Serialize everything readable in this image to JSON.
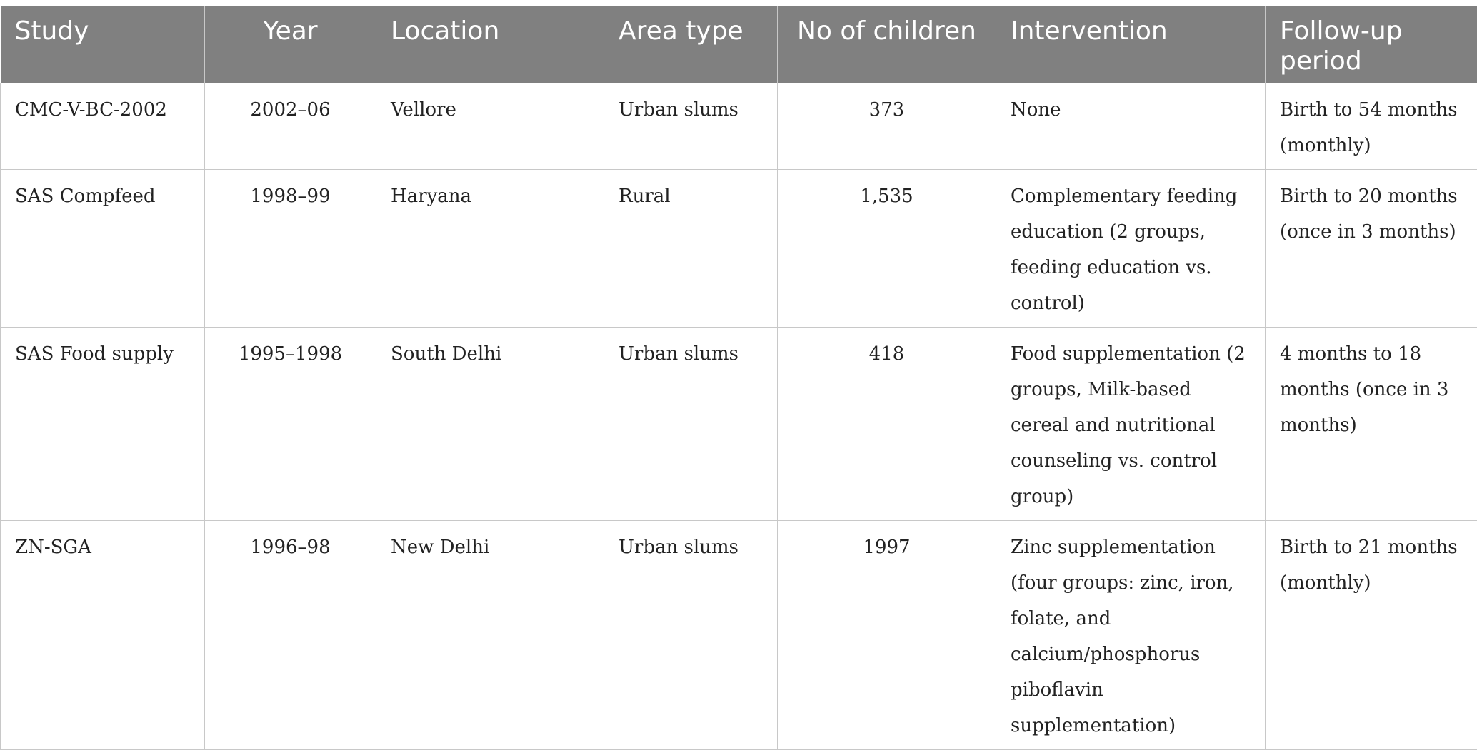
{
  "table": {
    "headers": [
      "Study",
      "Year",
      "Location",
      "Area type",
      "No of children",
      "Intervention",
      "Follow-up period"
    ],
    "rows": [
      {
        "study": "CMC-V-BC-2002",
        "year": "2002–06",
        "location": "Vellore",
        "area_type": "Urban slums",
        "children": "373",
        "intervention": "None",
        "follow_up": "Birth to 54 months (monthly)"
      },
      {
        "study": "SAS Compfeed",
        "year": "1998–99",
        "location": "Haryana",
        "area_type": "Rural",
        "children": "1,535",
        "intervention": "Complementary feeding education (2 groups, feeding education vs. control)",
        "follow_up": "Birth to 20 months (once in 3 months)"
      },
      {
        "study": "SAS Food supply",
        "year": "1995–1998",
        "location": "South Delhi",
        "area_type": "Urban slums",
        "children": "418",
        "intervention": "Food supplementation (2 groups, Milk-based cereal and nutritional counseling vs. control group)",
        "follow_up": "4 months to 18 months (once in 3 months)"
      },
      {
        "study": "ZN-SGA",
        "year": "1996–98",
        "location": "New Delhi",
        "area_type": "Urban slums",
        "children": "1997",
        "intervention": "Zinc supplementation (four groups: zinc, iron, folate, and calcium/phosphorus piboflavin supplementation)",
        "follow_up": "Birth to 21 months (monthly)"
      }
    ]
  }
}
